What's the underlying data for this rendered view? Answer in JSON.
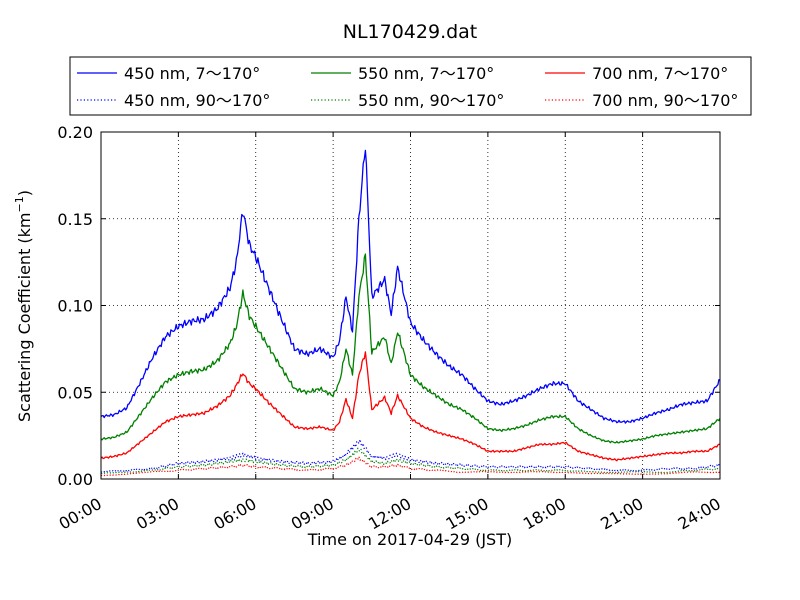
{
  "chart_data": {
    "type": "line",
    "title": "NL170429.dat",
    "xlabel": "Time on 2017-04-29 (JST)",
    "ylabel": "Scattering Coefficient (km",
    "ylabel_sup": "−1",
    "ylabel_end": ")",
    "xlim": [
      0,
      24
    ],
    "ylim": [
      0,
      0.2
    ],
    "grid": true,
    "legend_position": "top, outside above plot",
    "x_ticks": [
      0,
      3,
      6,
      9,
      12,
      15,
      18,
      21,
      24
    ],
    "x_tick_labels": [
      "00:00",
      "03:00",
      "06:00",
      "09:00",
      "12:00",
      "15:00",
      "18:00",
      "21:00",
      "24:00"
    ],
    "y_ticks": [
      0,
      0.05,
      0.1,
      0.15,
      0.2
    ],
    "y_tick_labels": [
      "0.00",
      "0.05",
      "0.10",
      "0.15",
      "0.20"
    ],
    "x_unit": "hours",
    "series": [
      {
        "name": "450 nm, 7～170°",
        "color": "#0000ff",
        "style": "solid",
        "x": [
          0,
          0.5,
          1,
          1.5,
          2,
          2.5,
          3,
          3.5,
          4,
          4.5,
          5,
          5.25,
          5.5,
          5.75,
          6,
          6.5,
          7,
          7.5,
          8,
          8.5,
          9,
          9.25,
          9.5,
          9.75,
          10,
          10.25,
          10.5,
          11,
          11.25,
          11.5,
          12,
          12.5,
          13,
          13.5,
          14,
          14.5,
          15,
          15.5,
          16,
          16.5,
          17,
          17.5,
          18,
          18.5,
          19,
          19.5,
          20,
          20.5,
          21,
          21.5,
          22,
          22.5,
          23,
          23.5,
          24
        ],
        "y": [
          0.036,
          0.037,
          0.041,
          0.055,
          0.07,
          0.082,
          0.088,
          0.091,
          0.092,
          0.098,
          0.11,
          0.125,
          0.155,
          0.135,
          0.128,
          0.11,
          0.092,
          0.075,
          0.072,
          0.075,
          0.07,
          0.08,
          0.105,
          0.085,
          0.15,
          0.193,
          0.105,
          0.115,
          0.095,
          0.122,
          0.09,
          0.08,
          0.072,
          0.065,
          0.06,
          0.052,
          0.045,
          0.043,
          0.045,
          0.048,
          0.052,
          0.055,
          0.055,
          0.045,
          0.04,
          0.035,
          0.033,
          0.033,
          0.035,
          0.038,
          0.04,
          0.043,
          0.044,
          0.045,
          0.057
        ]
      },
      {
        "name": "450 nm, 90～170°",
        "color": "#0000ff",
        "style": "dotted",
        "x": [
          0,
          1,
          2,
          3,
          4,
          5,
          5.5,
          6,
          7,
          8,
          9,
          9.5,
          10,
          10.5,
          11,
          11.5,
          12,
          13,
          14,
          15,
          16,
          17,
          18,
          19,
          20,
          21,
          22,
          23,
          24
        ],
        "y": [
          0.004,
          0.005,
          0.006,
          0.009,
          0.01,
          0.012,
          0.014,
          0.012,
          0.01,
          0.009,
          0.01,
          0.014,
          0.022,
          0.013,
          0.012,
          0.014,
          0.011,
          0.009,
          0.008,
          0.007,
          0.007,
          0.007,
          0.007,
          0.006,
          0.005,
          0.005,
          0.006,
          0.006,
          0.008
        ]
      },
      {
        "name": "550 nm, 7～170°",
        "color": "#008000",
        "style": "solid",
        "x": [
          0,
          0.5,
          1,
          1.5,
          2,
          2.5,
          3,
          3.5,
          4,
          4.5,
          5,
          5.25,
          5.5,
          5.75,
          6,
          6.5,
          7,
          7.5,
          8,
          8.5,
          9,
          9.25,
          9.5,
          9.75,
          10,
          10.25,
          10.5,
          11,
          11.25,
          11.5,
          12,
          12.5,
          13,
          13.5,
          14,
          14.5,
          15,
          15.5,
          16,
          16.5,
          17,
          17.5,
          18,
          18.5,
          19,
          19.5,
          20,
          20.5,
          21,
          21.5,
          22,
          22.5,
          23,
          23.5,
          24
        ],
        "y": [
          0.023,
          0.024,
          0.027,
          0.037,
          0.047,
          0.056,
          0.06,
          0.062,
          0.063,
          0.068,
          0.078,
          0.088,
          0.107,
          0.094,
          0.088,
          0.076,
          0.064,
          0.052,
          0.05,
          0.052,
          0.048,
          0.056,
          0.075,
          0.06,
          0.105,
          0.129,
          0.073,
          0.082,
          0.066,
          0.085,
          0.06,
          0.053,
          0.048,
          0.043,
          0.04,
          0.035,
          0.029,
          0.028,
          0.029,
          0.031,
          0.034,
          0.036,
          0.036,
          0.029,
          0.025,
          0.022,
          0.021,
          0.022,
          0.023,
          0.025,
          0.026,
          0.027,
          0.028,
          0.029,
          0.035
        ]
      },
      {
        "name": "550 nm, 90～170°",
        "color": "#008000",
        "style": "dotted",
        "x": [
          0,
          1,
          2,
          3,
          4,
          5,
          5.5,
          6,
          7,
          8,
          9,
          9.5,
          10,
          10.5,
          11,
          11.5,
          12,
          13,
          14,
          15,
          16,
          17,
          18,
          19,
          20,
          21,
          22,
          23,
          24
        ],
        "y": [
          0.003,
          0.004,
          0.005,
          0.007,
          0.008,
          0.01,
          0.011,
          0.01,
          0.008,
          0.007,
          0.008,
          0.011,
          0.017,
          0.01,
          0.009,
          0.011,
          0.009,
          0.007,
          0.006,
          0.005,
          0.005,
          0.005,
          0.005,
          0.004,
          0.004,
          0.004,
          0.004,
          0.005,
          0.006
        ]
      },
      {
        "name": "700 nm, 7～170°",
        "color": "#ff0000",
        "style": "solid",
        "x": [
          0,
          0.5,
          1,
          1.5,
          2,
          2.5,
          3,
          3.5,
          4,
          4.5,
          5,
          5.25,
          5.5,
          5.75,
          6,
          6.5,
          7,
          7.5,
          8,
          8.5,
          9,
          9.25,
          9.5,
          9.75,
          10,
          10.25,
          10.5,
          11,
          11.25,
          11.5,
          12,
          12.5,
          13,
          13.5,
          14,
          14.5,
          15,
          15.5,
          16,
          16.5,
          17,
          17.5,
          18,
          18.5,
          19,
          19.5,
          20,
          20.5,
          21,
          21.5,
          22,
          22.5,
          23,
          23.5,
          24
        ],
        "y": [
          0.012,
          0.013,
          0.015,
          0.021,
          0.027,
          0.033,
          0.036,
          0.037,
          0.038,
          0.042,
          0.048,
          0.054,
          0.061,
          0.055,
          0.052,
          0.044,
          0.037,
          0.03,
          0.029,
          0.03,
          0.028,
          0.033,
          0.046,
          0.035,
          0.06,
          0.073,
          0.04,
          0.047,
          0.038,
          0.048,
          0.035,
          0.03,
          0.027,
          0.025,
          0.023,
          0.02,
          0.016,
          0.016,
          0.016,
          0.018,
          0.02,
          0.02,
          0.021,
          0.016,
          0.014,
          0.012,
          0.011,
          0.012,
          0.013,
          0.014,
          0.015,
          0.015,
          0.016,
          0.016,
          0.02
        ]
      },
      {
        "name": "700 nm, 90～170°",
        "color": "#ff0000",
        "style": "dotted",
        "x": [
          0,
          1,
          2,
          3,
          4,
          5,
          5.5,
          6,
          7,
          8,
          9,
          9.5,
          10,
          10.5,
          11,
          11.5,
          12,
          13,
          14,
          15,
          16,
          17,
          18,
          19,
          20,
          21,
          22,
          23,
          24
        ],
        "y": [
          0.002,
          0.003,
          0.004,
          0.005,
          0.006,
          0.007,
          0.008,
          0.007,
          0.006,
          0.005,
          0.006,
          0.008,
          0.012,
          0.007,
          0.007,
          0.008,
          0.006,
          0.005,
          0.004,
          0.004,
          0.004,
          0.004,
          0.004,
          0.003,
          0.003,
          0.003,
          0.003,
          0.004,
          0.004
        ]
      }
    ]
  }
}
